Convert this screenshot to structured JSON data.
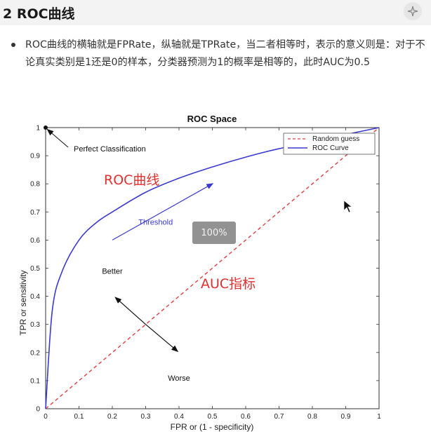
{
  "heading": "2 ROC曲线",
  "paragraph": "ROC曲线的横轴就是FPRate，纵轴就是TPRate，当二者相等时，表示的意义则是：对于不论真实类别是1还是0的样本，分类器预测为1的概率是相等的，此时AUC为0.5",
  "zoom_badge": "100%",
  "overlay": {
    "roc_label": "ROC曲线",
    "auc_label": "AUC指标",
    "roc_color": "#e03030",
    "auc_color": "#e03030"
  },
  "chart_data": {
    "type": "line",
    "title": "ROC Space",
    "xlabel": "FPR or (1 - specificity)",
    "ylabel": "TPR or sensitivity",
    "xlim": [
      0,
      1
    ],
    "ylim": [
      0,
      1
    ],
    "x_ticks": [
      "0",
      "0.1",
      "0.2",
      "0.3",
      "0.4",
      "0.5",
      "0.6",
      "0.7",
      "0.8",
      "0.9",
      "1"
    ],
    "y_ticks": [
      "0",
      "0.1",
      "0.2",
      "0.3",
      "0.4",
      "0.5",
      "0.6",
      "0.7",
      "0.8",
      "0.9",
      "1"
    ],
    "legend_position": "top-right",
    "series": [
      {
        "name": "Random guess",
        "style": "dashed",
        "color": "#e04040",
        "x": [
          0,
          1
        ],
        "y": [
          0,
          1
        ]
      },
      {
        "name": "ROC Curve",
        "style": "solid",
        "color": "#3a3ad0",
        "x": [
          0,
          0.02,
          0.05,
          0.1,
          0.15,
          0.2,
          0.3,
          0.4,
          0.5,
          0.6,
          0.7,
          0.8,
          0.9,
          1.0
        ],
        "y": [
          0,
          0.35,
          0.49,
          0.6,
          0.66,
          0.7,
          0.77,
          0.82,
          0.86,
          0.895,
          0.925,
          0.948,
          0.975,
          1.0
        ]
      }
    ],
    "points": [
      {
        "label": "Perfect Classification",
        "x": 0,
        "y": 1
      }
    ],
    "annotations": [
      {
        "text": "Threshold",
        "x": 0.33,
        "y": 0.655,
        "color": "#3a3ad0"
      },
      {
        "text": "Better",
        "x": 0.2,
        "y": 0.48,
        "color": "#111111"
      },
      {
        "text": "Worse",
        "x": 0.4,
        "y": 0.1,
        "color": "#111111"
      }
    ]
  }
}
